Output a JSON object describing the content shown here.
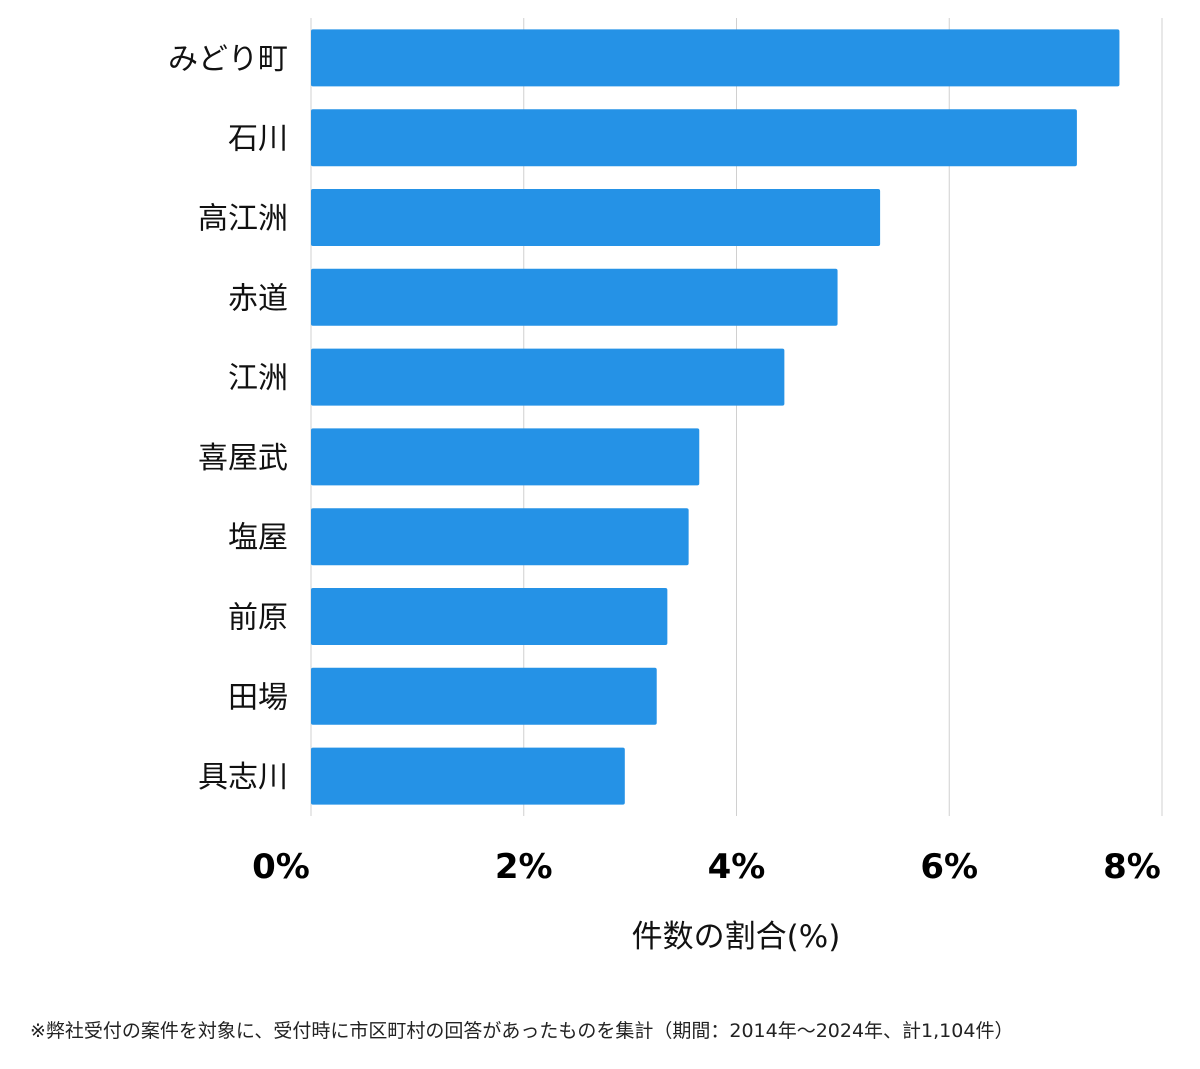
{
  "chart_data": {
    "type": "bar",
    "orientation": "horizontal",
    "categories": [
      "みどり町",
      "石川",
      "高江洲",
      "赤道",
      "江洲",
      "喜屋武",
      "塩屋",
      "前原",
      "田場",
      "具志川"
    ],
    "values": [
      7.6,
      7.2,
      5.35,
      4.95,
      4.45,
      3.65,
      3.55,
      3.35,
      3.25,
      2.95
    ],
    "xlabel": "件数の割合(%)",
    "ylabel": "",
    "xlim": [
      0,
      8
    ],
    "xticks": [
      0,
      2,
      4,
      6,
      8
    ],
    "xtick_labels": [
      "0%",
      "2%",
      "4%",
      "6%",
      "8%"
    ],
    "grid": "vertical",
    "legend": "none",
    "colors": {
      "bar": "#2592e6",
      "grid": "#d0d0d0"
    }
  },
  "footnote": "※弊社受付の案件を対象に、受付時に市区町村の回答があったものを集計（期間：2014年～2024年、計1,104件）"
}
